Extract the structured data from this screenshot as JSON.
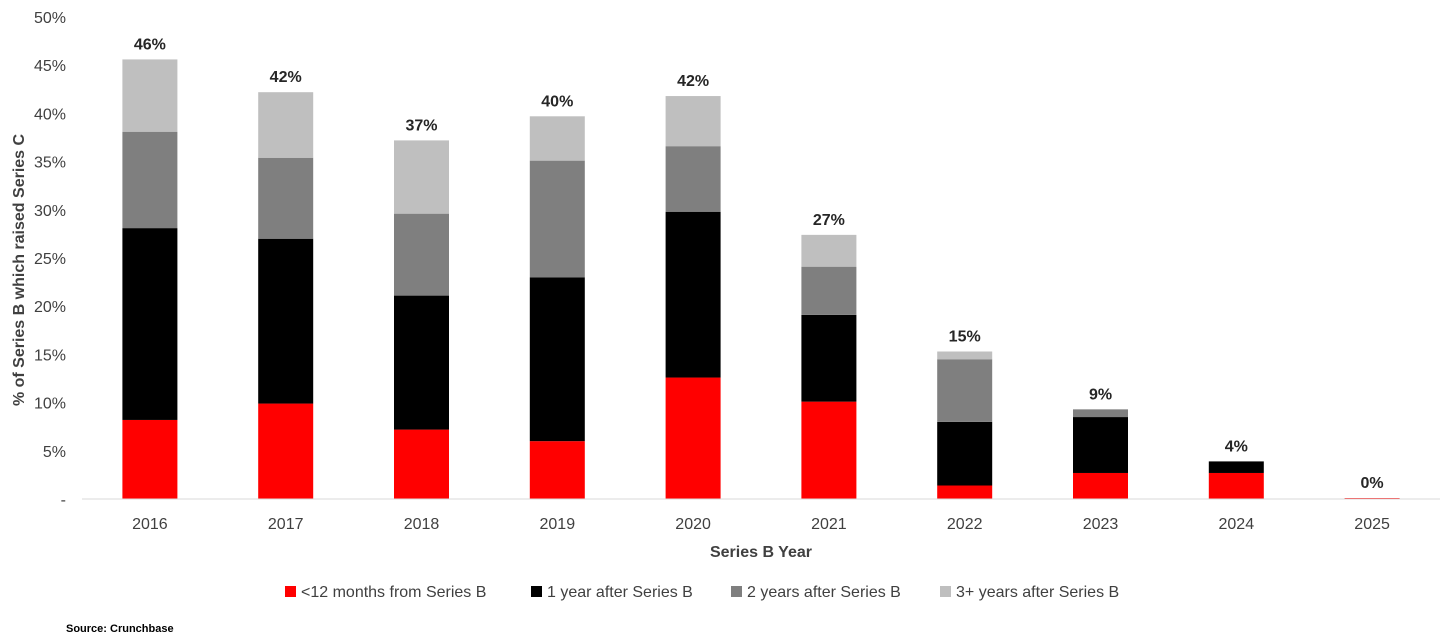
{
  "chart_data": {
    "type": "bar",
    "stacked": true,
    "categories": [
      "2016",
      "2017",
      "2018",
      "2019",
      "2020",
      "2021",
      "2022",
      "2023",
      "2024",
      "2025"
    ],
    "series": [
      {
        "name": "<12 months from Series B",
        "color": "#ff0000",
        "values": [
          8.2,
          9.9,
          7.2,
          6.0,
          12.6,
          10.1,
          1.4,
          2.7,
          2.7,
          0.1
        ]
      },
      {
        "name": "1 year after Series B",
        "color": "#000000",
        "values": [
          19.9,
          17.1,
          13.9,
          17.0,
          17.2,
          9.0,
          6.6,
          5.8,
          1.2,
          0
        ]
      },
      {
        "name": "2 years after Series B",
        "color": "#7f7f7f",
        "values": [
          10.0,
          8.4,
          8.5,
          12.1,
          6.8,
          5.0,
          6.5,
          0.8,
          0,
          0
        ]
      },
      {
        "name": "3+ years after Series B",
        "color": "#bfbfbf",
        "values": [
          7.5,
          6.8,
          7.6,
          4.6,
          5.2,
          3.3,
          0.8,
          0,
          0,
          0
        ]
      }
    ],
    "totals": [
      "46%",
      "42%",
      "37%",
      "40%",
      "42%",
      "27%",
      "15%",
      "9%",
      "4%",
      "0%"
    ],
    "yticks": [
      {
        "value": 0,
        "label": "-"
      },
      {
        "value": 5,
        "label": "5%"
      },
      {
        "value": 10,
        "label": "10%"
      },
      {
        "value": 15,
        "label": "15%"
      },
      {
        "value": 20,
        "label": "20%"
      },
      {
        "value": 25,
        "label": "25%"
      },
      {
        "value": 30,
        "label": "30%"
      },
      {
        "value": 35,
        "label": "35%"
      },
      {
        "value": 40,
        "label": "40%"
      },
      {
        "value": 45,
        "label": "45%"
      },
      {
        "value": 50,
        "label": "50%"
      }
    ],
    "ylim": [
      0,
      50
    ],
    "xlabel": "Series B Year",
    "ylabel": "% of Series B which raised Series C",
    "grid": false,
    "legend_position": "bottom"
  },
  "source": "Source: Crunchbase"
}
